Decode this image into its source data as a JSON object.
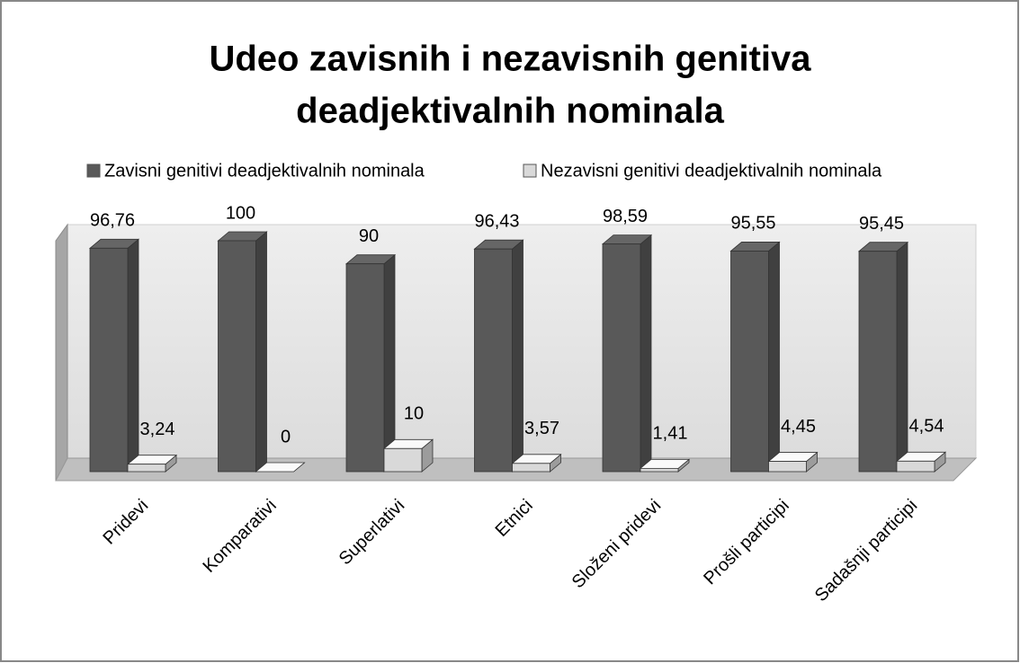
{
  "chart_data": {
    "type": "bar3d",
    "title": [
      "Udeo zavisnih i nezavisnih genitiva",
      "deadjektivalnih nominala"
    ],
    "categories": [
      "Pridevi",
      "Komparativi",
      "Superlativi",
      "Etnici",
      "Složeni pridevi",
      "Prošli participi",
      "Sadašnji participi"
    ],
    "series": [
      {
        "name": "Zavisni genitivi deadjektivalnih nominala",
        "color": "#595959",
        "values": [
          96.76,
          100,
          90,
          96.43,
          98.59,
          95.55,
          95.45
        ],
        "value_labels": [
          "96,76",
          "100",
          "90",
          "96,43",
          "98,59",
          "95,55",
          "95,45"
        ]
      },
      {
        "name": "Nezavisni genitivi deadjektivalnih nominala",
        "color": "#d9d9d9",
        "values": [
          3.24,
          0,
          10,
          3.57,
          1.41,
          4.45,
          4.54
        ],
        "value_labels": [
          "3,24",
          "0",
          "10",
          "3,57",
          "1,41",
          "4,45",
          "4,54"
        ]
      }
    ],
    "ylim": [
      0,
      100
    ],
    "legend": "top"
  }
}
